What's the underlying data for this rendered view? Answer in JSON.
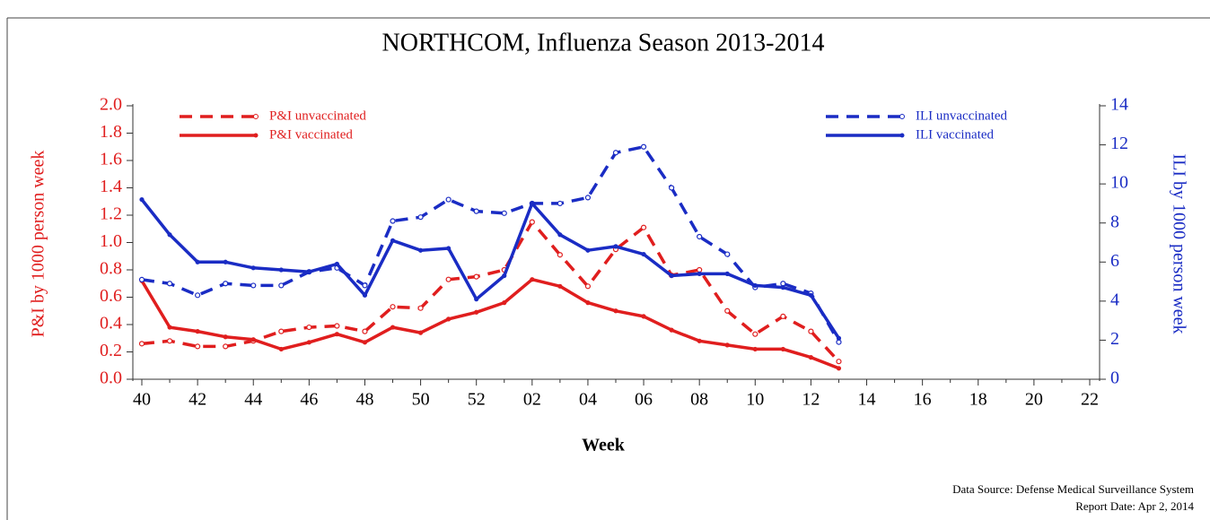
{
  "chart_data": {
    "type": "line",
    "title": "NORTHCOM, Influenza Season 2013-2014",
    "x_label": "Week",
    "y_label": "P&I by 1000 person week",
    "y2_label": "ILI by 1000 person week",
    "source": "Data Source: Defense Medical Surveillance System",
    "report_date": "Report Date: Apr 2, 2014",
    "categories": [
      "40",
      null,
      "42",
      null,
      "44",
      null,
      "46",
      null,
      "48",
      null,
      "50",
      null,
      "52",
      null,
      "02",
      null,
      "04",
      null,
      "06",
      null,
      "08",
      null,
      "10",
      null,
      "12",
      null,
      "14",
      null,
      "16",
      null,
      "18",
      null,
      "20",
      null,
      "22"
    ],
    "ylim": [
      0,
      2.0
    ],
    "yticks": [
      {
        "value": 0,
        "label": "0.0"
      },
      0.2,
      0.4,
      0.6,
      0.8,
      {
        "value": 1,
        "label": "1.0"
      },
      1.2,
      1.4,
      1.6,
      1.8,
      {
        "value": 2,
        "label": "2.0"
      }
    ],
    "y2lim": [
      0,
      14
    ],
    "y2ticks": [
      0,
      2,
      4,
      6,
      8,
      10,
      12,
      14
    ],
    "series": [
      {
        "name": "P&I unvaccinated",
        "color": "#e01e1e",
        "dashed": true,
        "axis": "y",
        "values": [
          0.26,
          0.28,
          0.24,
          0.24,
          0.28,
          0.35,
          0.38,
          0.39,
          0.35,
          0.53,
          0.52,
          0.73,
          0.75,
          0.8,
          1.15,
          0.91,
          0.68,
          0.95,
          1.11,
          0.76,
          0.8,
          0.5,
          0.33,
          0.46,
          0.35,
          0.13,
          null,
          null,
          null,
          null,
          null,
          null,
          null,
          null,
          null
        ]
      },
      {
        "name": "P&I vaccinated",
        "color": "#e01e1e",
        "dashed": false,
        "axis": "y",
        "values": [
          0.72,
          0.38,
          0.35,
          0.31,
          0.29,
          0.22,
          0.27,
          0.33,
          0.27,
          0.38,
          0.34,
          0.44,
          0.49,
          0.56,
          0.73,
          0.68,
          0.56,
          0.5,
          0.46,
          0.36,
          0.28,
          0.25,
          0.22,
          0.22,
          0.16,
          0.08,
          null,
          null,
          null,
          null,
          null,
          null,
          null,
          null,
          null
        ]
      },
      {
        "name": "ILI unvaccinated",
        "color": "#1a2cc4",
        "dashed": true,
        "axis": "y2",
        "values": [
          5.1,
          4.9,
          4.3,
          4.9,
          4.8,
          4.8,
          5.5,
          5.7,
          4.8,
          8.1,
          8.3,
          9.2,
          8.6,
          8.5,
          9.0,
          9.0,
          9.3,
          11.6,
          11.9,
          9.8,
          7.3,
          6.4,
          4.7,
          4.9,
          4.4,
          1.9,
          null,
          null,
          null,
          null,
          null,
          null,
          null,
          null,
          null
        ]
      },
      {
        "name": "ILI vaccinated",
        "color": "#1a2cc4",
        "dashed": false,
        "axis": "y2",
        "values": [
          9.2,
          7.4,
          6.0,
          6.0,
          5.7,
          5.6,
          5.5,
          5.9,
          4.3,
          7.1,
          6.6,
          6.7,
          4.1,
          5.3,
          9.0,
          7.4,
          6.6,
          6.8,
          6.4,
          5.3,
          5.4,
          5.4,
          4.8,
          4.7,
          4.3,
          2.1,
          null,
          null,
          null,
          null,
          null,
          null,
          null,
          null,
          null
        ]
      }
    ]
  }
}
